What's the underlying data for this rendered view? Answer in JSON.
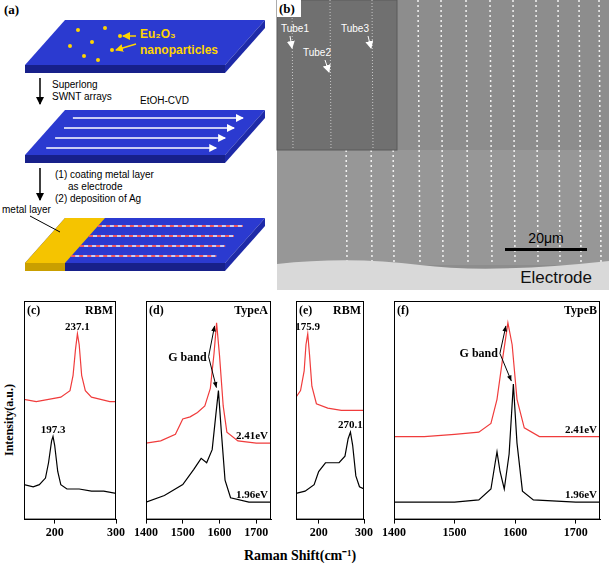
{
  "schematic": {
    "panel_label": "(a)",
    "particle_label": [
      "Eu₂O₃",
      "nanoparticles"
    ],
    "step1": [
      "Superlong",
      "SWNT arrays"
    ],
    "step1_method": "EtOH-CVD",
    "metal_label": "metal layer",
    "step2": [
      "(1) coating metal layer",
      "as electrode",
      "(2) deposition of Ag"
    ]
  },
  "micrograph": {
    "panel_label": "(b)",
    "tubes": [
      "Tube1",
      "Tube2",
      "Tube3"
    ],
    "scale_bar": "20μm",
    "region": "Electrode"
  },
  "axis_labels": {
    "x": "Raman Shift(cm⁻¹)",
    "y": "Intensity(a.u.)"
  },
  "chart_data": [
    {
      "type": "line",
      "panel_label": "(c)",
      "title": "RBM",
      "xlim": [
        150,
        300
      ],
      "xticks": [
        200,
        300
      ],
      "ylim": [
        0,
        10
      ],
      "grid": false,
      "tick_labels": "x",
      "series": [
        {
          "color": "#f03c3c",
          "peak": 237.1,
          "x": [
            150,
            170,
            190,
            210,
            225,
            230,
            234,
            237.1,
            240,
            244,
            250,
            260,
            275,
            290,
            300
          ],
          "values": [
            5.5,
            5.4,
            5.5,
            5.6,
            5.9,
            6.6,
            7.8,
            8.5,
            8.0,
            6.6,
            5.9,
            5.6,
            5.5,
            5.4,
            5.4
          ]
        },
        {
          "color": "#000000",
          "peak": 197.3,
          "x": [
            150,
            165,
            175,
            185,
            190,
            195,
            197.3,
            200,
            205,
            210,
            220,
            240,
            260,
            280,
            300
          ],
          "values": [
            1.6,
            1.5,
            1.6,
            1.9,
            2.6,
            3.6,
            3.8,
            3.4,
            2.2,
            1.6,
            1.4,
            1.4,
            1.3,
            1.3,
            1.2
          ]
        }
      ]
    },
    {
      "type": "line",
      "panel_label": "(d)",
      "title": "TypeA",
      "annotation": "G band",
      "xlim": [
        1400,
        1740
      ],
      "xticks": [
        1400,
        1500,
        1600,
        1700
      ],
      "ylim": [
        0,
        10
      ],
      "grid": false,
      "tick_labels": "x",
      "series": [
        {
          "name": "2.41eV",
          "color": "#f03c3c",
          "x": [
            1400,
            1440,
            1480,
            1500,
            1520,
            1540,
            1560,
            1575,
            1585,
            1592,
            1600,
            1610,
            1620,
            1650,
            1700,
            1740
          ],
          "values": [
            3.5,
            3.6,
            3.9,
            4.6,
            4.7,
            4.9,
            5.2,
            6.0,
            7.6,
            9.0,
            7.5,
            5.2,
            4.0,
            3.6,
            3.5,
            3.5
          ]
        },
        {
          "name": "1.96eV",
          "color": "#000000",
          "x": [
            1400,
            1450,
            1500,
            1530,
            1550,
            1565,
            1580,
            1590,
            1597,
            1605,
            1615,
            1630,
            1680,
            1740
          ],
          "values": [
            0.8,
            1.1,
            1.6,
            2.3,
            2.8,
            2.6,
            3.2,
            4.8,
            5.9,
            4.0,
            1.8,
            1.0,
            0.8,
            0.8
          ]
        }
      ]
    },
    {
      "type": "line",
      "panel_label": "(e)",
      "title": "RBM",
      "xlim": [
        150,
        300
      ],
      "xticks": [
        200,
        300
      ],
      "ylim": [
        0,
        10
      ],
      "grid": false,
      "tick_labels": "x",
      "series": [
        {
          "color": "#f03c3c",
          "peak": 175.9,
          "x": [
            150,
            160,
            168,
            172,
            175.9,
            180,
            185,
            195,
            220,
            250,
            280,
            300
          ],
          "values": [
            5.6,
            5.9,
            6.8,
            8.0,
            8.5,
            7.5,
            6.1,
            5.3,
            5.1,
            5.0,
            5.0,
            5.0
          ]
        },
        {
          "color": "#000000",
          "peak": 270.1,
          "x": [
            150,
            170,
            190,
            200,
            215,
            230,
            245,
            258,
            265,
            270.1,
            275,
            282,
            290,
            300
          ],
          "values": [
            1.2,
            1.3,
            1.6,
            2.2,
            2.6,
            2.6,
            2.6,
            2.9,
            3.7,
            4.0,
            3.4,
            2.0,
            1.5,
            1.4
          ]
        }
      ]
    },
    {
      "type": "line",
      "panel_label": "(f)",
      "title": "TypeB",
      "annotation": "G band",
      "xlim": [
        1400,
        1740
      ],
      "xticks": [
        1400,
        1500,
        1600,
        1700
      ],
      "ylim": [
        0,
        10
      ],
      "grid": false,
      "tick_labels": "x",
      "series": [
        {
          "name": "2.41eV",
          "color": "#f03c3c",
          "x": [
            1400,
            1450,
            1500,
            1540,
            1560,
            1570,
            1580,
            1588,
            1595,
            1603,
            1615,
            1640,
            1700,
            1740
          ],
          "values": [
            3.8,
            3.8,
            3.9,
            4.0,
            4.4,
            5.5,
            7.5,
            9.0,
            8.0,
            5.5,
            4.2,
            3.8,
            3.8,
            3.8
          ]
        },
        {
          "name": "1.96eV",
          "color": "#000000",
          "x": [
            1400,
            1500,
            1540,
            1560,
            1567,
            1570,
            1575,
            1582,
            1590,
            1597,
            1603,
            1612,
            1630,
            1700,
            1740
          ],
          "values": [
            0.8,
            0.8,
            0.9,
            1.4,
            2.6,
            3.1,
            2.2,
            1.4,
            3.0,
            6.2,
            3.5,
            1.3,
            0.9,
            0.8,
            0.8
          ]
        }
      ]
    }
  ]
}
